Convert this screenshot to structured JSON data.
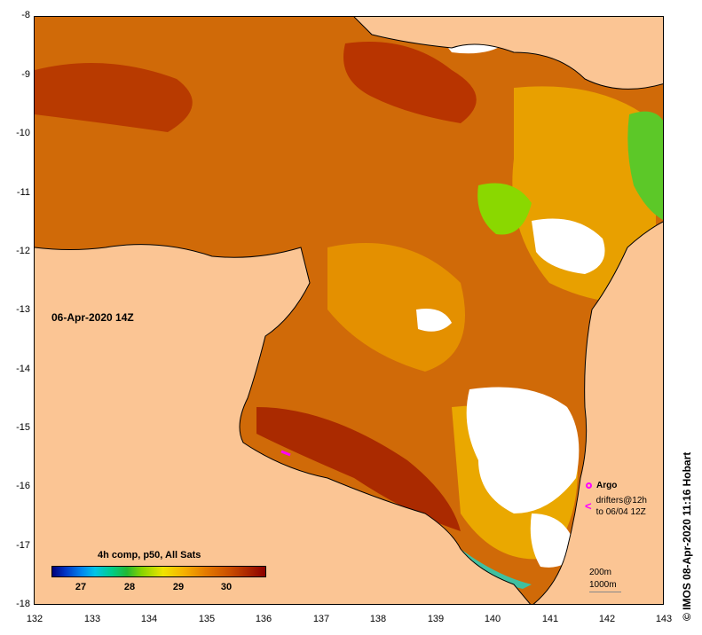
{
  "map": {
    "date_label": "06-Apr-2020 14Z",
    "composite_label": "4h comp, p50, All Sats",
    "colorbar_ticks": [
      "27",
      "28",
      "29",
      "30"
    ],
    "y_ticks": [
      "-8",
      "-9",
      "-10",
      "-11",
      "-12",
      "-13",
      "-14",
      "-15",
      "-16",
      "-17",
      "-18"
    ],
    "x_ticks": [
      "132",
      "133",
      "134",
      "135",
      "136",
      "137",
      "138",
      "139",
      "140",
      "141",
      "142",
      "143"
    ],
    "legend": {
      "argo": "Argo",
      "drifters_line1": "drifters@12h",
      "drifters_line2": "to 06/04 12Z",
      "bathy_200": "200m",
      "bathy_1000": "1000m"
    },
    "credit": "© IMOS 08-Apr-2020 11:16 Hobart",
    "colors": {
      "land": "#fbc594",
      "cloud": "#ffffff",
      "sst_warm": "#c84a00",
      "sst_hot": "#a02000",
      "sst_mid": "#e48a00",
      "sst_cool": "#f0c000",
      "sst_green": "#44c020",
      "marker": "#ff00ff"
    }
  }
}
